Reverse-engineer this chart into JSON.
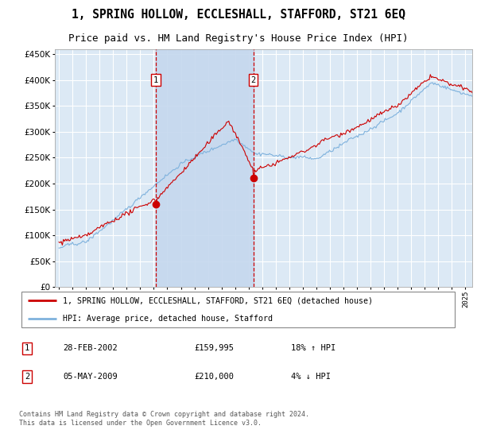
{
  "title": "1, SPRING HOLLOW, ECCLESHALL, STAFFORD, ST21 6EQ",
  "subtitle": "Price paid vs. HM Land Registry's House Price Index (HPI)",
  "title_fontsize": 10.5,
  "subtitle_fontsize": 9,
  "background_color": "#ffffff",
  "plot_bg_color": "#dce9f5",
  "grid_color": "#ffffff",
  "shade_color": "#c5d8ee",
  "ylim": [
    0,
    450000
  ],
  "yticks": [
    0,
    50000,
    100000,
    150000,
    200000,
    250000,
    300000,
    350000,
    400000,
    450000
  ],
  "legend1": "1, SPRING HOLLOW, ECCLESHALL, STAFFORD, ST21 6EQ (detached house)",
  "legend2": "HPI: Average price, detached house, Stafford",
  "sale1_date": "28-FEB-2002",
  "sale1_price": "£159,995",
  "sale1_hpi": "18% ↑ HPI",
  "sale2_date": "05-MAY-2009",
  "sale2_price": "£210,000",
  "sale2_hpi": "4% ↓ HPI",
  "footnote": "Contains HM Land Registry data © Crown copyright and database right 2024.\nThis data is licensed under the Open Government Licence v3.0.",
  "red_color": "#cc0000",
  "blue_color": "#7fb2dd",
  "marker1_x": 2002.16,
  "marker1_y": 159995,
  "marker2_x": 2009.35,
  "marker2_y": 210000,
  "vline1_x": 2002.16,
  "vline2_x": 2009.35,
  "xmin": 1995.0,
  "xmax": 2025.5
}
